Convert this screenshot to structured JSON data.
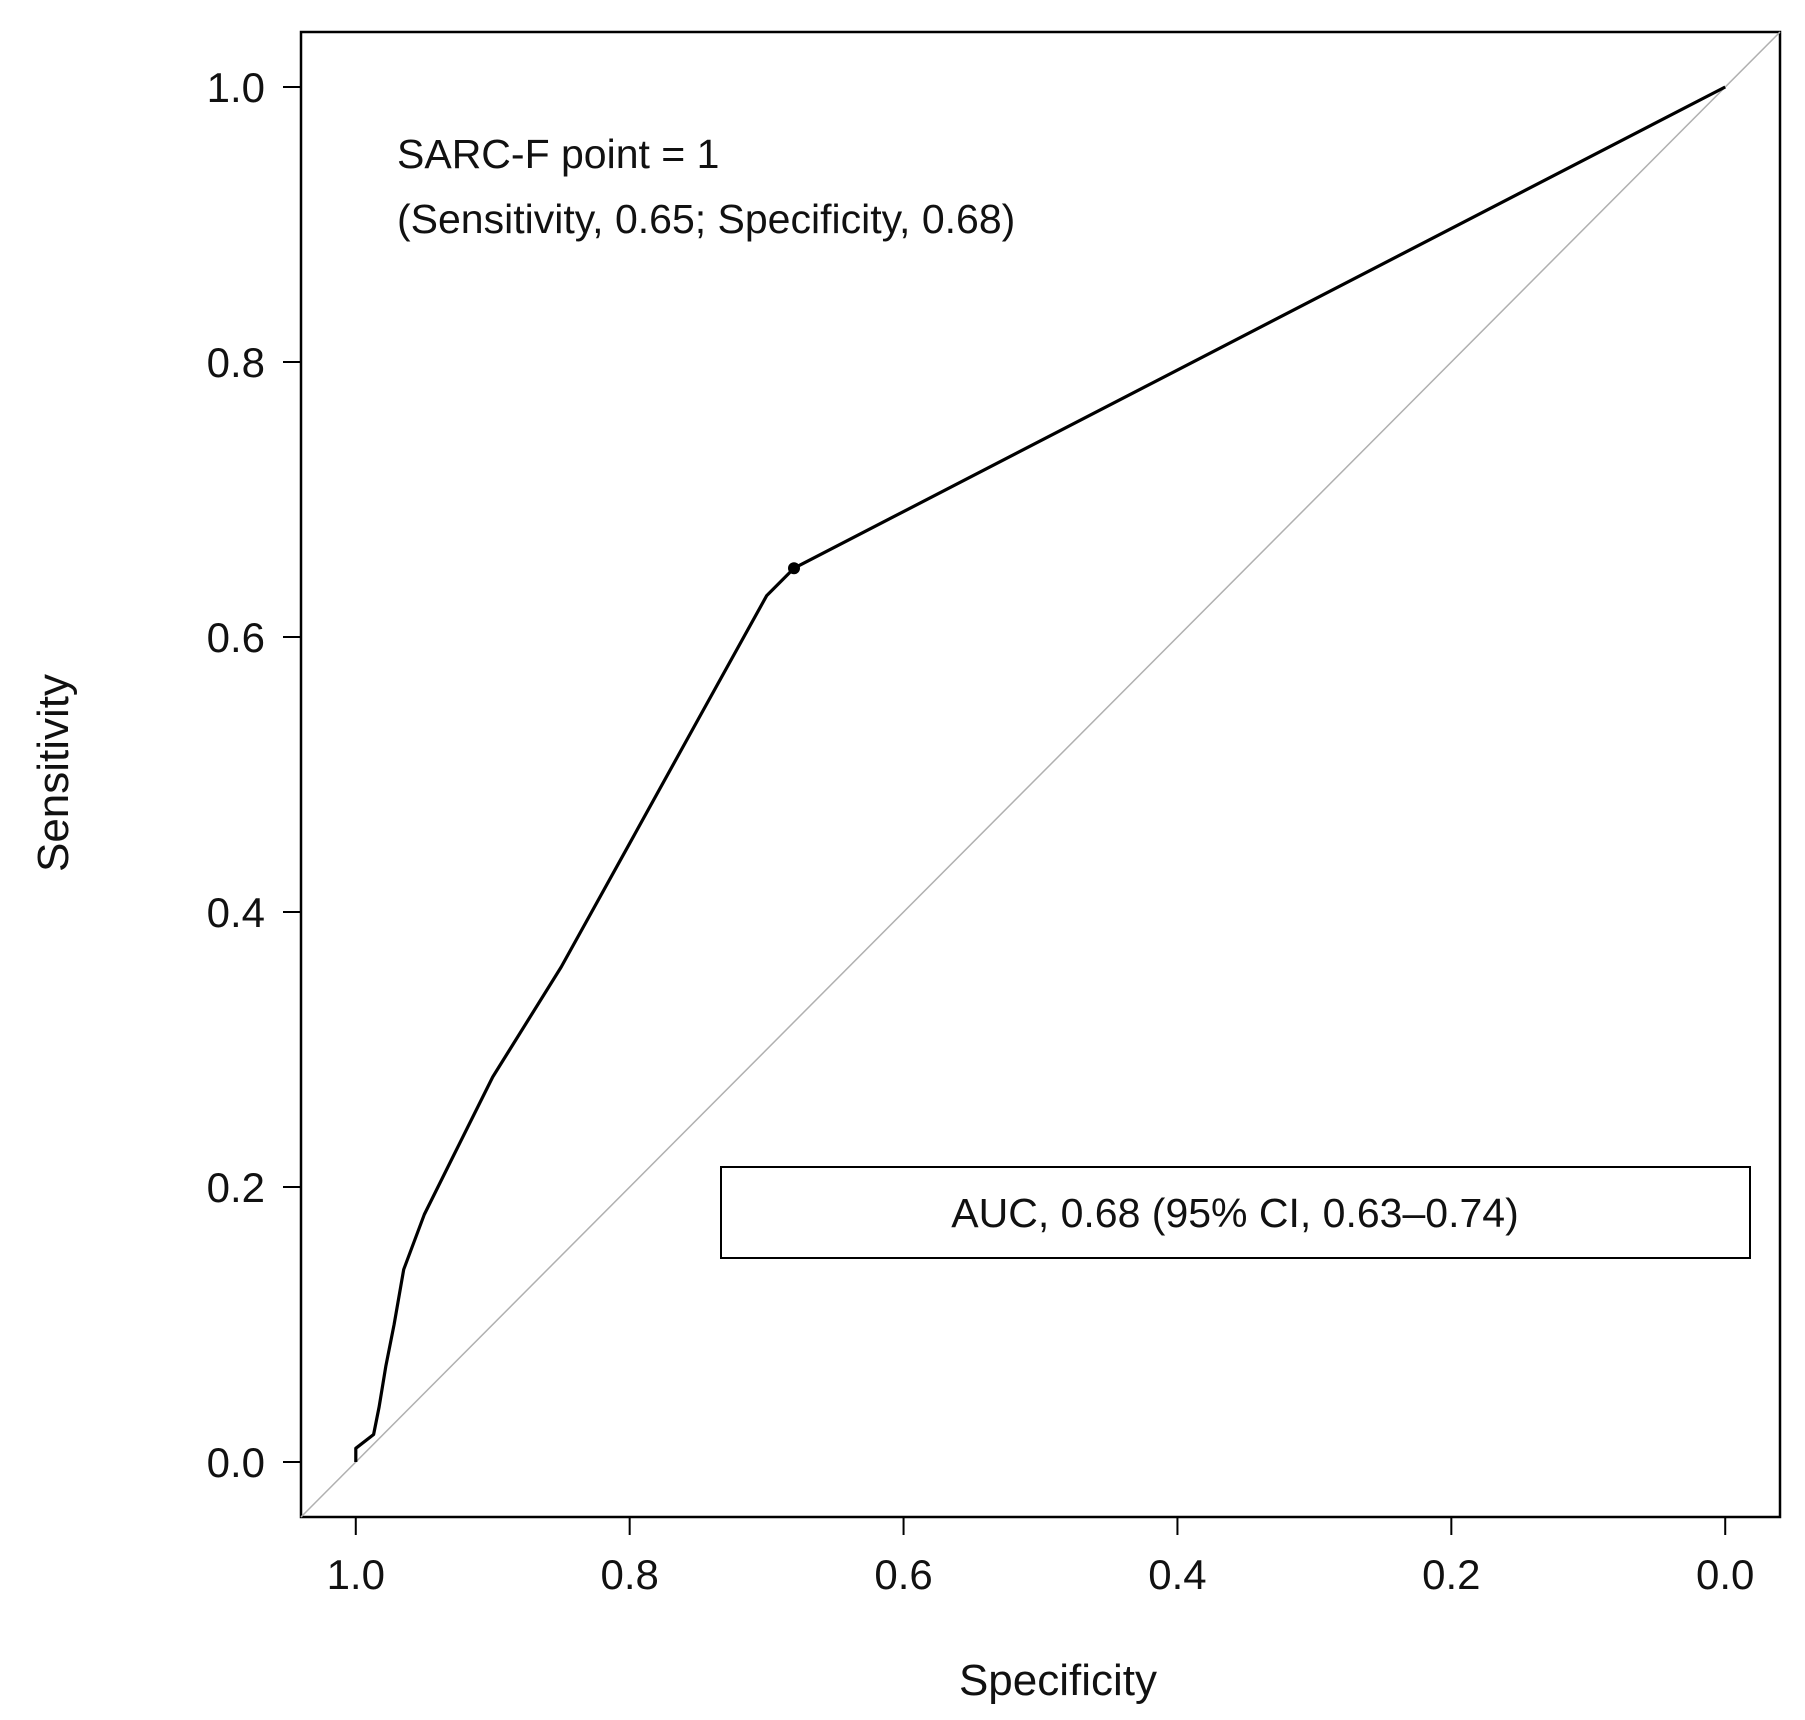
{
  "chart_data": {
    "type": "line",
    "title": "",
    "xlabel": "Specificity",
    "ylabel": "Sensitivity",
    "x_reversed": true,
    "xlim": [
      1.04,
      -0.04
    ],
    "ylim": [
      -0.04,
      1.04
    ],
    "x_ticks": [
      1.0,
      0.8,
      0.6,
      0.4,
      0.2,
      0.0
    ],
    "x_tick_labels": [
      "1.0",
      "0.8",
      "0.6",
      "0.4",
      "0.2",
      "0.0"
    ],
    "y_ticks": [
      0.0,
      0.2,
      0.4,
      0.6,
      0.8,
      1.0
    ],
    "y_tick_labels": [
      "0.0",
      "0.2",
      "0.4",
      "0.6",
      "0.8",
      "1.0"
    ],
    "series": [
      {
        "name": "ROC curve",
        "color": "#000000",
        "x": [
          1.0,
          1.0,
          0.987,
          0.983,
          0.978,
          0.972,
          0.965,
          0.95,
          0.93,
          0.9,
          0.85,
          0.8,
          0.75,
          0.7,
          0.68,
          0.0
        ],
        "y": [
          0.0,
          0.01,
          0.02,
          0.04,
          0.07,
          0.1,
          0.14,
          0.18,
          0.22,
          0.28,
          0.36,
          0.45,
          0.54,
          0.63,
          0.65,
          1.0
        ]
      },
      {
        "name": "Reference line",
        "color": "#b0b0b0",
        "x": [
          1.04,
          -0.04
        ],
        "y": [
          -0.04,
          1.04
        ]
      }
    ],
    "highlight_point": {
      "x": 0.68,
      "y": 0.65
    },
    "annotation_line1": "SARC-F point = 1",
    "annotation_line2": "(Sensitivity, 0.65; Specificity, 0.68)",
    "legend_text": "AUC, 0.68 (95% CI, 0.63–0.74)"
  }
}
